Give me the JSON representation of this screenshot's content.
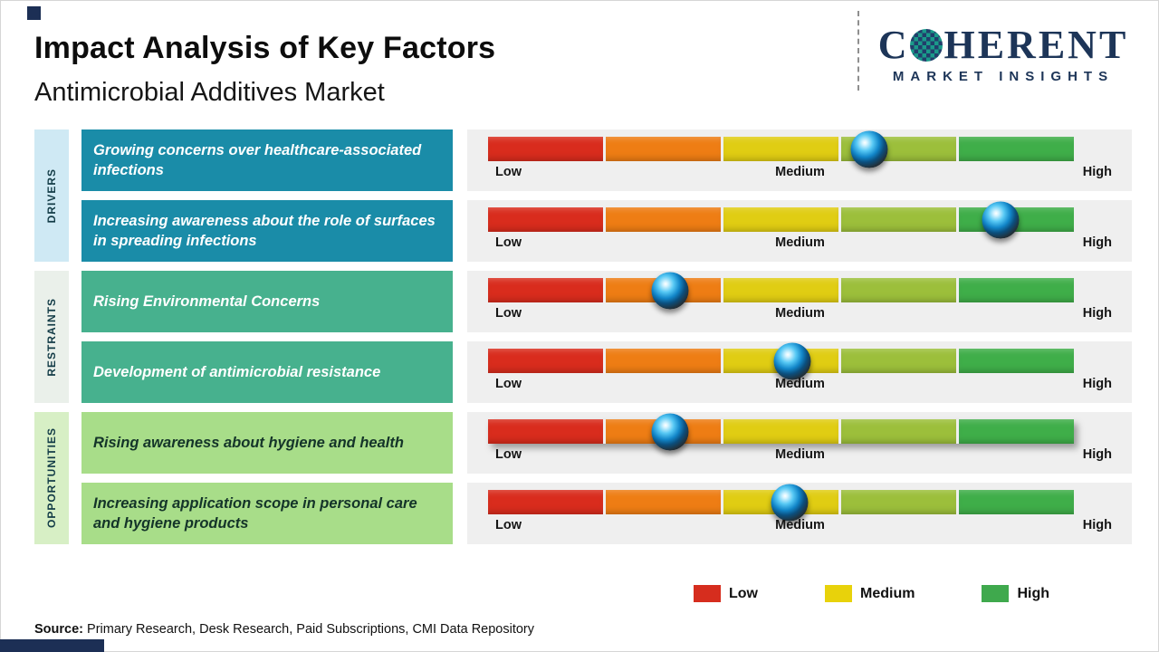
{
  "header": {
    "title": "Impact Analysis of Key Factors",
    "subtitle": "Antimicrobial Additives Market",
    "logo": {
      "word_pre": "C",
      "word_post": "HERENT",
      "tagline": "MARKET INSIGHTS"
    }
  },
  "chart_data": {
    "type": "table",
    "title": "Impact Analysis of Key Factors",
    "subtitle": "Antimicrobial Additives Market",
    "scale_labels": [
      "Low",
      "Medium",
      "High"
    ],
    "scale_range": [
      0,
      100
    ],
    "segment_colors": [
      "#d92c1d",
      "#ee7d14",
      "#e0cd13",
      "#9cbf3b",
      "#3fae49"
    ],
    "marker_color": "#2aa7e0",
    "groups": [
      {
        "name": "DRIVERS",
        "band_color": "#cfe9f4",
        "box_color": "#1a8ca8",
        "text_color": "#ffffff",
        "factors": [
          {
            "label": "Growing concerns over healthcare-associated infections",
            "impact_pct": 65,
            "impact_level": "Medium-High"
          },
          {
            "label": "Increasing awareness about the role of surfaces in spreading infections",
            "impact_pct": 87.5,
            "impact_level": "High"
          }
        ]
      },
      {
        "name": "RESTRAINTS",
        "band_color": "#eaf0ea",
        "box_color": "#47b18e",
        "text_color": "#ffffff",
        "factors": [
          {
            "label": "Rising Environmental Concerns",
            "impact_pct": 31,
            "impact_level": "Low-Medium"
          },
          {
            "label": "Development of antimicrobial resistance",
            "impact_pct": 52,
            "impact_level": "Medium"
          }
        ]
      },
      {
        "name": "OPPORTUNITIES",
        "band_color": "#d7efc5",
        "box_color": "#a8dd89",
        "text_color": "#143429",
        "factors": [
          {
            "label": "Rising awareness about hygiene and health",
            "impact_pct": 31,
            "impact_level": "Low-Medium"
          },
          {
            "label": "Increasing application scope in personal care and hygiene products",
            "impact_pct": 51.5,
            "impact_level": "Medium"
          }
        ]
      }
    ]
  },
  "legend": {
    "items": [
      {
        "label": "Low",
        "color": "#d62d1e"
      },
      {
        "label": "Medium",
        "color": "#e8d20b"
      },
      {
        "label": "High",
        "color": "#3fa94d"
      }
    ]
  },
  "source": {
    "prefix": "Source:",
    "text": " Primary Research, Desk Research, Paid Subscriptions, CMI Data Repository"
  }
}
